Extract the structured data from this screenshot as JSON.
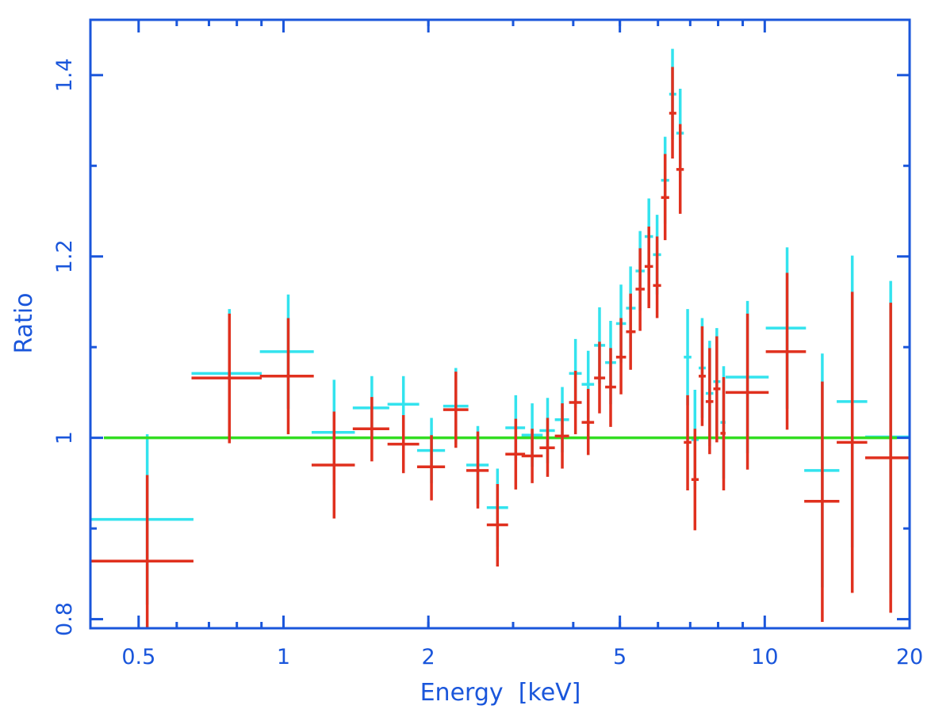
{
  "chart_data": {
    "type": "scatter",
    "style": "error-bar crosses (ratio plot)",
    "title": "",
    "xlabel": "Energy  [keV]",
    "ylabel": "Ratio",
    "xscale": "log",
    "xlim": [
      0.397,
      20
    ],
    "ylim": [
      0.79,
      1.461
    ],
    "x_ticks": [
      0.5,
      1,
      2,
      5,
      10,
      20
    ],
    "x_tick_labels": [
      "0.5",
      "1",
      "2",
      "5",
      "10",
      "20"
    ],
    "x_minor_ticks": [
      0.6,
      0.7,
      0.8,
      0.9,
      2,
      3,
      4,
      5,
      6,
      7,
      8,
      9
    ],
    "y_ticks": [
      0.8,
      1,
      1.2,
      1.4
    ],
    "y_tick_labels": [
      "0.8",
      "1",
      "1.2",
      "1.4"
    ],
    "y_minor_ticks": [
      0.9,
      1.1,
      1.3
    ],
    "grid": false,
    "legend": null,
    "colors": {
      "axes": "#1a56db",
      "series_cyan": "#33e3ee",
      "series_red": "#e0301e",
      "reference": "#33dd22"
    },
    "reference_line": {
      "name": "unity",
      "y": 1.0,
      "color": "#33dd22"
    },
    "series": [
      {
        "name": "cyan",
        "color": "#33e3ee",
        "points": [
          {
            "x": 0.521,
            "xlo": 0.397,
            "xhi": 0.65,
            "y": 0.91,
            "yerr": 0.094
          },
          {
            "x": 0.772,
            "xlo": 0.644,
            "xhi": 0.901,
            "y": 1.071,
            "yerr": 0.071
          },
          {
            "x": 1.023,
            "xlo": 0.893,
            "xhi": 1.156,
            "y": 1.095,
            "yerr": 0.063
          },
          {
            "x": 1.274,
            "xlo": 1.144,
            "xhi": 1.407,
            "y": 1.006,
            "yerr": 0.058
          },
          {
            "x": 1.526,
            "xlo": 1.393,
            "xhi": 1.659,
            "y": 1.033,
            "yerr": 0.035
          },
          {
            "x": 1.775,
            "xlo": 1.645,
            "xhi": 1.914,
            "y": 1.037,
            "yerr": 0.031
          },
          {
            "x": 2.03,
            "xlo": 1.895,
            "xhi": 2.166,
            "y": 0.986,
            "yerr": 0.036
          },
          {
            "x": 2.281,
            "xlo": 2.147,
            "xhi": 2.422,
            "y": 1.035,
            "yerr": 0.042
          },
          {
            "x": 2.534,
            "xlo": 2.398,
            "xhi": 2.669,
            "y": 0.97,
            "yerr": 0.043
          },
          {
            "x": 2.784,
            "xlo": 2.645,
            "xhi": 2.929,
            "y": 0.923,
            "yerr": 0.043
          },
          {
            "x": 3.038,
            "xlo": 2.891,
            "xhi": 3.177,
            "y": 1.011,
            "yerr": 0.036
          },
          {
            "x": 3.287,
            "xlo": 3.124,
            "xhi": 3.456,
            "y": 1.003,
            "yerr": 0.035
          },
          {
            "x": 3.538,
            "xlo": 3.405,
            "xhi": 3.663,
            "y": 1.008,
            "yerr": 0.036
          },
          {
            "x": 3.796,
            "xlo": 3.663,
            "xhi": 3.921,
            "y": 1.02,
            "yerr": 0.036
          },
          {
            "x": 4.043,
            "xlo": 3.921,
            "xhi": 4.165,
            "y": 1.071,
            "yerr": 0.038
          },
          {
            "x": 4.297,
            "xlo": 4.165,
            "xhi": 4.42,
            "y": 1.059,
            "yerr": 0.037
          },
          {
            "x": 4.536,
            "xlo": 4.42,
            "xhi": 4.66,
            "y": 1.102,
            "yerr": 0.042
          },
          {
            "x": 4.784,
            "xlo": 4.66,
            "xhi": 4.91,
            "y": 1.083,
            "yerr": 0.046
          },
          {
            "x": 5.027,
            "xlo": 4.91,
            "xhi": 5.15,
            "y": 1.126,
            "yerr": 0.043
          },
          {
            "x": 5.263,
            "xlo": 5.15,
            "xhi": 5.39,
            "y": 1.143,
            "yerr": 0.046
          },
          {
            "x": 5.508,
            "xlo": 5.39,
            "xhi": 5.63,
            "y": 1.184,
            "yerr": 0.044
          },
          {
            "x": 5.744,
            "xlo": 5.63,
            "xhi": 5.86,
            "y": 1.222,
            "yerr": 0.042
          },
          {
            "x": 5.975,
            "xlo": 5.86,
            "xhi": 6.09,
            "y": 1.202,
            "yerr": 0.044
          },
          {
            "x": 6.208,
            "xlo": 6.09,
            "xhi": 6.33,
            "y": 1.284,
            "yerr": 0.048
          },
          {
            "x": 6.432,
            "xlo": 6.33,
            "xhi": 6.55,
            "y": 1.379,
            "yerr": 0.05
          },
          {
            "x": 6.673,
            "xlo": 6.55,
            "xhi": 6.79,
            "y": 1.336,
            "yerr": 0.049
          },
          {
            "x": 6.914,
            "xlo": 6.79,
            "xhi": 7.04,
            "y": 1.089,
            "yerr": 0.053
          },
          {
            "x": 7.161,
            "xlo": 7.04,
            "xhi": 7.29,
            "y": 0.998,
            "yerr": 0.055
          },
          {
            "x": 7.413,
            "xlo": 7.29,
            "xhi": 7.54,
            "y": 1.077,
            "yerr": 0.055
          },
          {
            "x": 7.683,
            "xlo": 7.54,
            "xhi": 7.82,
            "y": 1.049,
            "yerr": 0.058
          },
          {
            "x": 7.95,
            "xlo": 7.82,
            "xhi": 8.09,
            "y": 1.062,
            "yerr": 0.059
          },
          {
            "x": 8.215,
            "xlo": 8.09,
            "xhi": 8.29,
            "y": 1.017,
            "yerr": 0.062
          },
          {
            "x": 9.208,
            "xlo": 8.29,
            "xhi": 10.19,
            "y": 1.067,
            "yerr": 0.084
          },
          {
            "x": 11.13,
            "xlo": 10.05,
            "xhi": 12.18,
            "y": 1.121,
            "yerr": 0.089
          },
          {
            "x": 13.17,
            "xlo": 12.08,
            "xhi": 14.29,
            "y": 0.964,
            "yerr": 0.129
          },
          {
            "x": 15.2,
            "xlo": 14.11,
            "xhi": 16.33,
            "y": 1.04,
            "yerr": 0.161
          },
          {
            "x": 18.27,
            "xlo": 16.17,
            "xhi": 20.0,
            "y": 1.001,
            "yerr": 0.172
          }
        ]
      },
      {
        "name": "red",
        "color": "#e0301e",
        "points": [
          {
            "x": 0.521,
            "xlo": 0.397,
            "xhi": 0.65,
            "y": 0.864,
            "ylo": 0.77,
            "yhi": 0.959
          },
          {
            "x": 0.772,
            "xlo": 0.644,
            "xhi": 0.901,
            "y": 1.066,
            "ylo": 0.994,
            "yhi": 1.137
          },
          {
            "x": 1.023,
            "xlo": 0.893,
            "xhi": 1.156,
            "y": 1.068,
            "ylo": 1.004,
            "yhi": 1.132
          },
          {
            "x": 1.274,
            "xlo": 1.144,
            "xhi": 1.407,
            "y": 0.97,
            "ylo": 0.911,
            "yhi": 1.029
          },
          {
            "x": 1.526,
            "xlo": 1.393,
            "xhi": 1.659,
            "y": 1.01,
            "ylo": 0.974,
            "yhi": 1.045
          },
          {
            "x": 1.775,
            "xlo": 1.645,
            "xhi": 1.914,
            "y": 0.993,
            "ylo": 0.961,
            "yhi": 1.025
          },
          {
            "x": 2.03,
            "xlo": 1.895,
            "xhi": 2.166,
            "y": 0.968,
            "ylo": 0.931,
            "yhi": 1.003
          },
          {
            "x": 2.281,
            "xlo": 2.147,
            "xhi": 2.422,
            "y": 1.031,
            "ylo": 0.989,
            "yhi": 1.073
          },
          {
            "x": 2.534,
            "xlo": 2.398,
            "xhi": 2.669,
            "y": 0.964,
            "ylo": 0.922,
            "yhi": 1.007
          },
          {
            "x": 2.784,
            "xlo": 2.645,
            "xhi": 2.929,
            "y": 0.904,
            "ylo": 0.858,
            "yhi": 0.949
          },
          {
            "x": 3.038,
            "xlo": 2.891,
            "xhi": 3.177,
            "y": 0.982,
            "ylo": 0.943,
            "yhi": 1.021
          },
          {
            "x": 3.287,
            "xlo": 3.124,
            "xhi": 3.456,
            "y": 0.98,
            "ylo": 0.95,
            "yhi": 1.01
          },
          {
            "x": 3.538,
            "xlo": 3.405,
            "xhi": 3.663,
            "y": 0.989,
            "ylo": 0.957,
            "yhi": 1.022
          },
          {
            "x": 3.796,
            "xlo": 3.663,
            "xhi": 3.921,
            "y": 1.002,
            "ylo": 0.966,
            "yhi": 1.038
          },
          {
            "x": 4.043,
            "xlo": 3.921,
            "xhi": 4.165,
            "y": 1.039,
            "ylo": 1.004,
            "yhi": 1.074
          },
          {
            "x": 4.297,
            "xlo": 4.165,
            "xhi": 4.42,
            "y": 1.017,
            "ylo": 0.981,
            "yhi": 1.054
          },
          {
            "x": 4.536,
            "xlo": 4.42,
            "xhi": 4.66,
            "y": 1.066,
            "ylo": 1.027,
            "yhi": 1.106
          },
          {
            "x": 4.784,
            "xlo": 4.66,
            "xhi": 4.91,
            "y": 1.056,
            "ylo": 1.012,
            "yhi": 1.099
          },
          {
            "x": 5.027,
            "xlo": 4.91,
            "xhi": 5.15,
            "y": 1.089,
            "ylo": 1.048,
            "yhi": 1.132
          },
          {
            "x": 5.263,
            "xlo": 5.15,
            "xhi": 5.39,
            "y": 1.117,
            "ylo": 1.075,
            "yhi": 1.159
          },
          {
            "x": 5.508,
            "xlo": 5.39,
            "xhi": 5.63,
            "y": 1.164,
            "ylo": 1.118,
            "yhi": 1.209
          },
          {
            "x": 5.744,
            "xlo": 5.63,
            "xhi": 5.86,
            "y": 1.189,
            "ylo": 1.143,
            "yhi": 1.233
          },
          {
            "x": 5.975,
            "xlo": 5.86,
            "xhi": 6.09,
            "y": 1.168,
            "ylo": 1.132,
            "yhi": 1.222
          },
          {
            "x": 6.208,
            "xlo": 6.09,
            "xhi": 6.33,
            "y": 1.265,
            "ylo": 1.218,
            "yhi": 1.313
          },
          {
            "x": 6.432,
            "xlo": 6.33,
            "xhi": 6.55,
            "y": 1.358,
            "ylo": 1.308,
            "yhi": 1.409
          },
          {
            "x": 6.673,
            "xlo": 6.55,
            "xhi": 6.79,
            "y": 1.296,
            "ylo": 1.247,
            "yhi": 1.346
          },
          {
            "x": 6.914,
            "xlo": 6.79,
            "xhi": 7.04,
            "y": 0.995,
            "ylo": 0.942,
            "yhi": 1.047
          },
          {
            "x": 7.161,
            "xlo": 7.04,
            "xhi": 7.29,
            "y": 0.954,
            "ylo": 0.898,
            "yhi": 1.01
          },
          {
            "x": 7.413,
            "xlo": 7.29,
            "xhi": 7.54,
            "y": 1.068,
            "ylo": 1.013,
            "yhi": 1.123
          },
          {
            "x": 7.683,
            "xlo": 7.54,
            "xhi": 7.82,
            "y": 1.04,
            "ylo": 0.982,
            "yhi": 1.099
          },
          {
            "x": 7.95,
            "xlo": 7.82,
            "xhi": 8.09,
            "y": 1.054,
            "ylo": 0.995,
            "yhi": 1.112
          },
          {
            "x": 8.215,
            "xlo": 8.09,
            "xhi": 8.29,
            "y": 1.005,
            "ylo": 0.942,
            "yhi": 1.067
          },
          {
            "x": 9.208,
            "xlo": 8.29,
            "xhi": 10.19,
            "y": 1.05,
            "ylo": 0.965,
            "yhi": 1.137
          },
          {
            "x": 11.13,
            "xlo": 10.05,
            "xhi": 12.18,
            "y": 1.095,
            "ylo": 1.009,
            "yhi": 1.182
          },
          {
            "x": 13.17,
            "xlo": 12.08,
            "xhi": 14.29,
            "y": 0.93,
            "ylo": 0.797,
            "yhi": 1.062
          },
          {
            "x": 15.2,
            "xlo": 14.11,
            "xhi": 16.33,
            "y": 0.995,
            "ylo": 0.829,
            "yhi": 1.161
          },
          {
            "x": 18.27,
            "xlo": 16.17,
            "xhi": 20.0,
            "y": 0.978,
            "ylo": 0.807,
            "yhi": 1.149
          }
        ]
      }
    ]
  }
}
